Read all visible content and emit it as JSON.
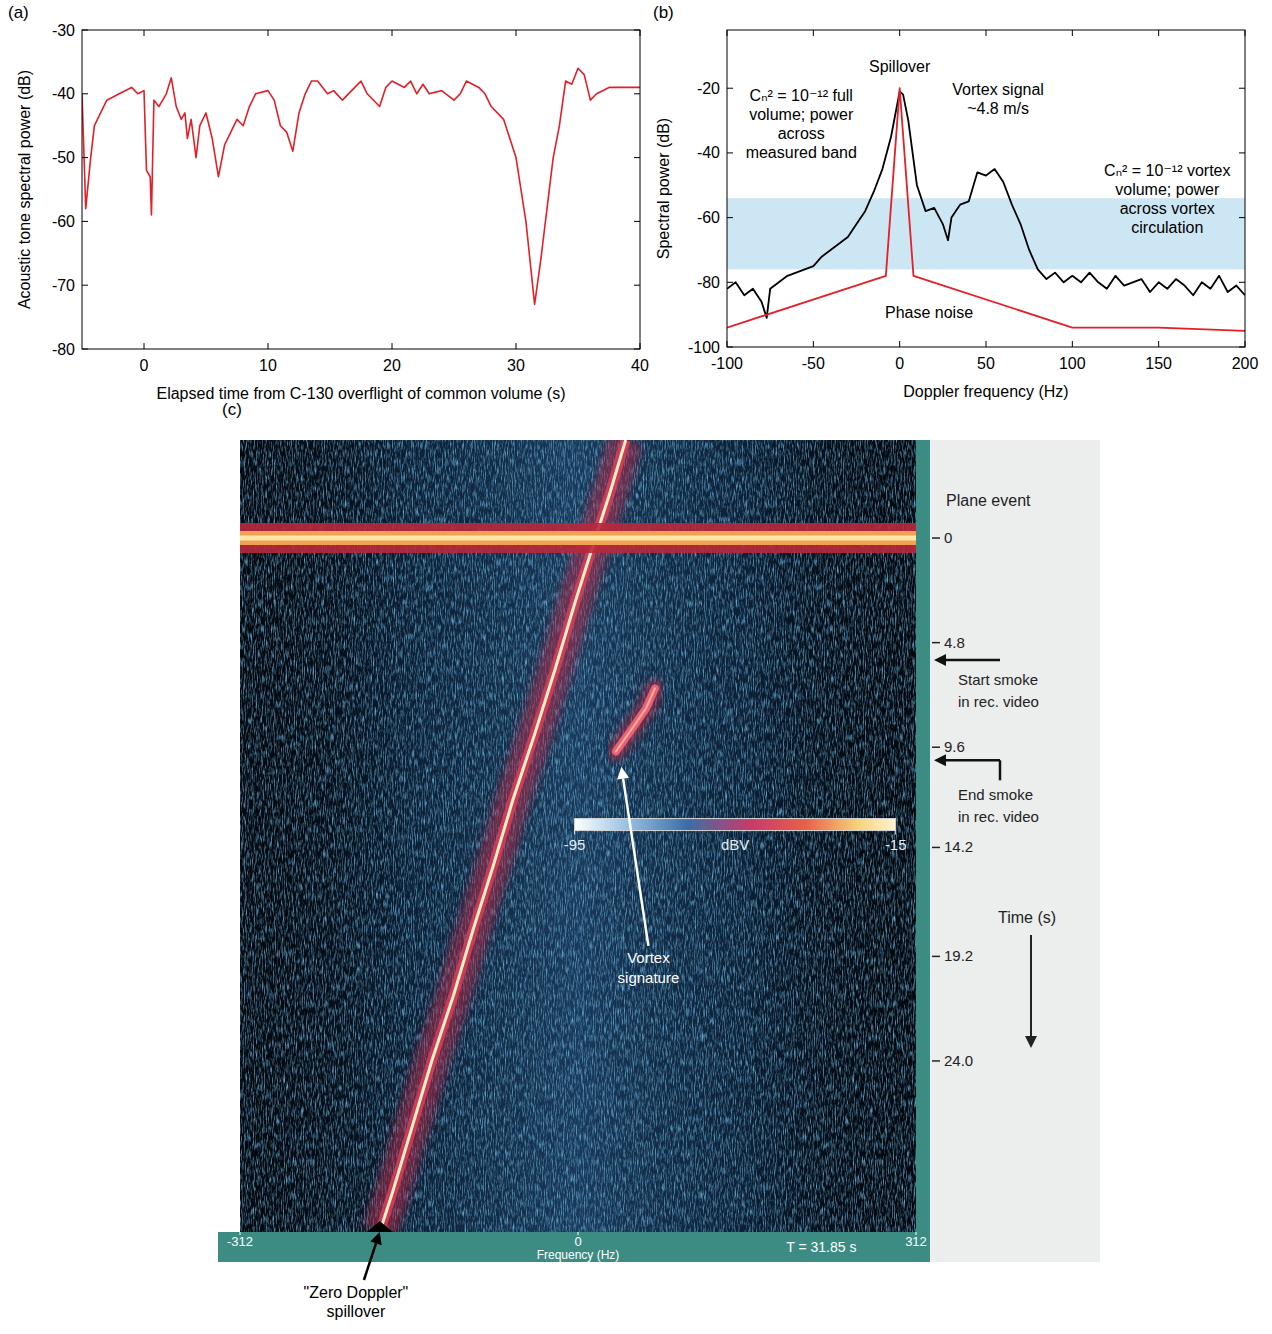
{
  "chart_data": [
    {
      "type": "line",
      "panel": "(a)",
      "x_label": "Elapsed time from C-130 overflight of common volume (s)",
      "y_label": "Acoustic tone spectral power (dB)",
      "xlim": [
        -5,
        40
      ],
      "ylim": [
        -80,
        -30
      ],
      "xticks": [
        0,
        10,
        20,
        30,
        40
      ],
      "yticks": [
        -80,
        -70,
        -60,
        -50,
        -40,
        -30
      ],
      "color": "#e41f26",
      "x": [
        -5,
        -4.7,
        -4.3,
        -4,
        -3,
        -2,
        -1,
        -0.5,
        0,
        0.2,
        0.5,
        0.6,
        0.8,
        1.2,
        1.8,
        2.2,
        2.6,
        3,
        3.3,
        3.5,
        3.8,
        4.2,
        4.5,
        5,
        5.5,
        6,
        6.5,
        7,
        7.5,
        8,
        8.5,
        9,
        10,
        10.5,
        11,
        11.5,
        12,
        12.5,
        13,
        13.5,
        14,
        14.8,
        15.3,
        16,
        17,
        17.5,
        18,
        19,
        19.5,
        20,
        21,
        21.5,
        22,
        22.5,
        23,
        24,
        25,
        25.5,
        26,
        27,
        27.5,
        28,
        29,
        30,
        30.8,
        31.5,
        32,
        33,
        33.5,
        34,
        34.5,
        35,
        35.5,
        36,
        36.5,
        37.5,
        38,
        40
      ],
      "values": [
        -40,
        -58,
        -50,
        -45,
        -41,
        -40,
        -39,
        -40,
        -39.5,
        -52,
        -53,
        -59,
        -41,
        -42,
        -40,
        -37.5,
        -42,
        -44,
        -43,
        -47,
        -44,
        -50,
        -45,
        -43,
        -47,
        -53,
        -48,
        -46,
        -44,
        -45,
        -42,
        -40,
        -39.5,
        -41,
        -45,
        -46,
        -49,
        -43,
        -40,
        -38,
        -38,
        -40,
        -39.5,
        -41,
        -39,
        -38,
        -40,
        -42,
        -39,
        -38,
        -39,
        -38,
        -40,
        -38.5,
        -40,
        -39.5,
        -41,
        -40,
        -38,
        -39,
        -40,
        -42,
        -44,
        -50,
        -60,
        -73,
        -66,
        -50,
        -45,
        -38,
        -38.5,
        -36,
        -37,
        -41,
        -40,
        -39,
        -39,
        -39
      ]
    },
    {
      "type": "line",
      "panel": "(b)",
      "x_label": "Doppler frequency (Hz)",
      "y_label": "Spectral power (dB)",
      "xlim": [
        -100,
        200
      ],
      "ylim": [
        -100,
        -2
      ],
      "xticks": [
        -100,
        -50,
        0,
        50,
        100,
        150,
        200
      ],
      "yticks": [
        -100,
        -80,
        -60,
        -40,
        -20
      ],
      "shaded_band": {
        "values": [
          -76,
          -54
        ],
        "color": "#cde6f4"
      },
      "series": [
        {
          "color": "#000000",
          "x": [
            -100,
            -95,
            -90,
            -85,
            -80,
            -77,
            -75,
            -70,
            -65,
            -60,
            -55,
            -50,
            -45,
            -40,
            -35,
            -30,
            -25,
            -20,
            -15,
            -10,
            -5,
            0,
            2,
            5,
            10,
            15,
            20,
            25,
            28,
            30,
            35,
            40,
            45,
            50,
            55,
            60,
            65,
            70,
            75,
            80,
            85,
            90,
            95,
            100,
            105,
            110,
            115,
            120,
            125,
            130,
            135,
            140,
            145,
            150,
            155,
            160,
            165,
            170,
            175,
            180,
            185,
            190,
            195,
            200
          ],
          "values": [
            -82,
            -80,
            -84,
            -82,
            -86,
            -91,
            -82,
            -80,
            -78,
            -77,
            -76,
            -75,
            -72,
            -70,
            -68,
            -66,
            -62,
            -58,
            -52,
            -45,
            -35,
            -21,
            -22,
            -30,
            -50,
            -58,
            -57,
            -62,
            -67,
            -60,
            -56,
            -55,
            -46,
            -47,
            -45,
            -49,
            -56,
            -62,
            -70,
            -76,
            -79,
            -77,
            -80,
            -78,
            -80,
            -77,
            -80,
            -82,
            -78,
            -81,
            -80,
            -79,
            -83,
            -80,
            -82,
            -79,
            -81,
            -84,
            -80,
            -82,
            -78,
            -83,
            -81,
            -84
          ]
        },
        {
          "color": "#e41f26",
          "x": [
            -100,
            -8,
            0,
            8,
            100,
            150,
            200
          ],
          "values": [
            -94,
            -78,
            -20,
            -78,
            -94,
            -94,
            -95
          ]
        }
      ],
      "annotations": [
        {
          "lines": [
            "Spillover"
          ],
          "x": 0,
          "y": -15
        },
        {
          "lines": [
            "Cₙ² = 10⁻¹² full",
            "volume; power",
            "across",
            "measured band"
          ],
          "x": -57,
          "y": -24
        },
        {
          "lines": [
            "Vortex signal",
            "~4.8 m/s"
          ],
          "x": 57,
          "y": -22
        },
        {
          "lines": [
            "Cₙ² = 10⁻¹² vortex",
            "volume; power",
            "across vortex",
            "circulation"
          ],
          "x": 155,
          "y": -47
        },
        {
          "lines": [
            "Phase noise"
          ],
          "x": 17,
          "y": -91
        }
      ]
    },
    {
      "type": "spectrogram",
      "panel": "(c)",
      "x_label": "Frequency (Hz)",
      "y_label": "Time (s)",
      "xlim": [
        -312,
        312
      ],
      "ylim": [
        -4.5,
        31.85
      ],
      "xticks": [
        -312,
        0,
        312
      ],
      "yticks": [
        0,
        4.8,
        9.6,
        14.2,
        19.2,
        {
          "value": 24,
          "label": "24.0"
        }
      ],
      "time_label": "T = 31.85 s",
      "plane_event": {
        "label": "Plane event",
        "time": 0,
        "frequency": [
          -312,
          312
        ],
        "color": "#ffe7a8"
      },
      "events": [
        {
          "lines": [
            "Start smoke",
            "in rec. video"
          ],
          "time": 5.6
        },
        {
          "lines": [
            "End smoke",
            "in rec. video"
          ],
          "time": 10.2
        }
      ],
      "spillover": {
        "time": [
          -4.5,
          -2,
          0,
          3,
          6,
          9,
          12,
          15,
          18,
          21,
          24,
          27,
          30,
          31.85
        ],
        "frequency": [
          44,
          29,
          16,
          -3,
          -21,
          -40,
          -60,
          -78,
          -97,
          -115,
          -135,
          -153,
          -171,
          -183
        ],
        "color": "#fff1c6"
      },
      "vortex": {
        "time": [
          6.9,
          7.8,
          8.6,
          9.3,
          9.8
        ],
        "frequency": [
          71,
          63,
          52,
          42,
          35
        ],
        "color": "#e8607a"
      },
      "colorbar": {
        "range": [
          -95,
          -15
        ],
        "ticks": [
          -95,
          -15
        ],
        "label": "dBV"
      },
      "annotations": [
        {
          "lines": [
            "Vortex",
            "signature"
          ],
          "x": 65,
          "y": 19.5,
          "arrow_x": 40,
          "arrow_y": 10.5
        },
        {
          "lines": [
            "\"Zero Doppler\"",
            "spillover"
          ],
          "x": -205,
          "arrow_x": -183,
          "arrow_y": 31.85
        }
      ]
    }
  ]
}
